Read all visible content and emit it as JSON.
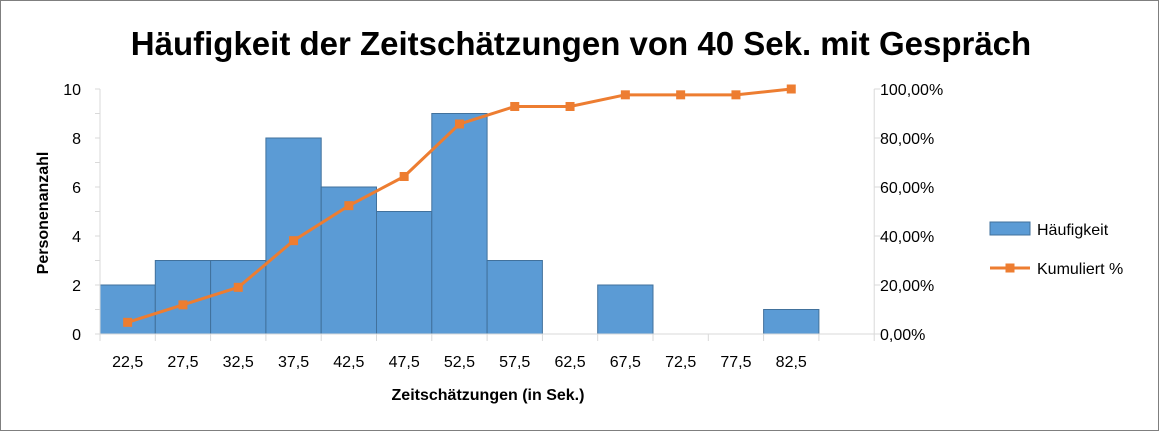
{
  "chart_data": {
    "type": "bar",
    "title": "Häufigkeit der Zeitschätzungen von 40 Sek. mit Gespräch",
    "xlabel": "Zeitschätzungen (in Sek.)",
    "ylabel": "Personenanzahl",
    "categories": [
      "22,5",
      "27,5",
      "32,5",
      "37,5",
      "42,5",
      "47,5",
      "52,5",
      "57,5",
      "62,5",
      "67,5",
      "72,5",
      "77,5",
      "82,5"
    ],
    "ylim": [
      0,
      10
    ],
    "yticks": [
      "0",
      "2",
      "4",
      "6",
      "8",
      "10"
    ],
    "y2lim": [
      0,
      100
    ],
    "y2ticks": [
      "0,00%",
      "20,00%",
      "40,00%",
      "60,00%",
      "80,00%",
      "100,00%"
    ],
    "grid": false,
    "legend_position": "right",
    "series": [
      {
        "name": "Häufigkeit",
        "type": "bar",
        "axis": "left",
        "color": "#5B9BD5",
        "values": [
          2,
          3,
          3,
          8,
          6,
          5,
          9,
          3,
          0,
          2,
          0,
          0,
          1
        ]
      },
      {
        "name": "Kumuliert %",
        "type": "line",
        "axis": "right",
        "color": "#ED7D31",
        "values": [
          4.76,
          11.9,
          19.05,
          38.1,
          52.38,
          64.29,
          85.71,
          92.86,
          92.86,
          97.62,
          97.62,
          97.62,
          100
        ]
      }
    ]
  }
}
